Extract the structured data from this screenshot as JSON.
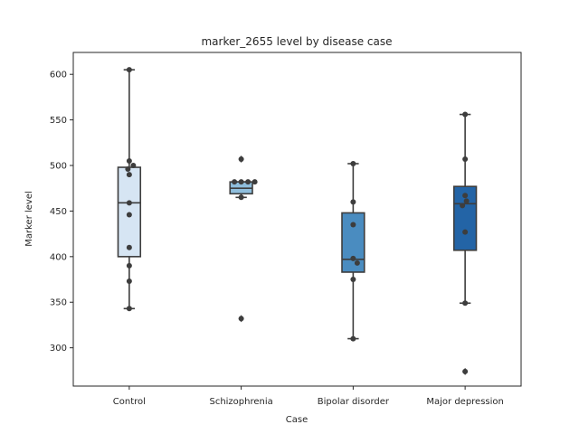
{
  "chart_data": {
    "type": "box",
    "title": "marker_2655 level by disease case",
    "xlabel": "Case",
    "ylabel": "Marker level",
    "ylim": [
      258,
      624
    ],
    "yticks": [
      300,
      350,
      400,
      450,
      500,
      550,
      600
    ],
    "grid": false,
    "legend": "none",
    "categories": [
      "Control",
      "Schizophrenia",
      "Bipolar disorder",
      "Major depression"
    ],
    "colors": [
      "#d6e5f3",
      "#8fbedc",
      "#4a8cc0",
      "#2364a6"
    ],
    "boxes": [
      {
        "whisker_low": 343,
        "q1": 400,
        "median": 459,
        "q3": 498,
        "whisker_high": 605,
        "outliers": []
      },
      {
        "whisker_low": 465,
        "q1": 469,
        "median": 475,
        "q3": 482,
        "whisker_high": 482,
        "outliers": [
          507,
          332
        ]
      },
      {
        "whisker_low": 310,
        "q1": 383,
        "median": 397,
        "q3": 448,
        "whisker_high": 502,
        "outliers": []
      },
      {
        "whisker_low": 349,
        "q1": 407,
        "median": 458,
        "q3": 477,
        "whisker_high": 556,
        "outliers": [
          274
        ]
      }
    ],
    "points": [
      [
        605,
        505,
        500,
        496,
        490,
        459,
        446,
        410,
        390,
        373,
        343
      ],
      [
        507,
        482,
        482,
        482,
        482,
        465,
        332
      ],
      [
        502,
        460,
        435,
        398,
        393,
        375,
        310
      ],
      [
        556,
        507,
        467,
        461,
        456,
        427,
        349,
        274
      ]
    ]
  }
}
